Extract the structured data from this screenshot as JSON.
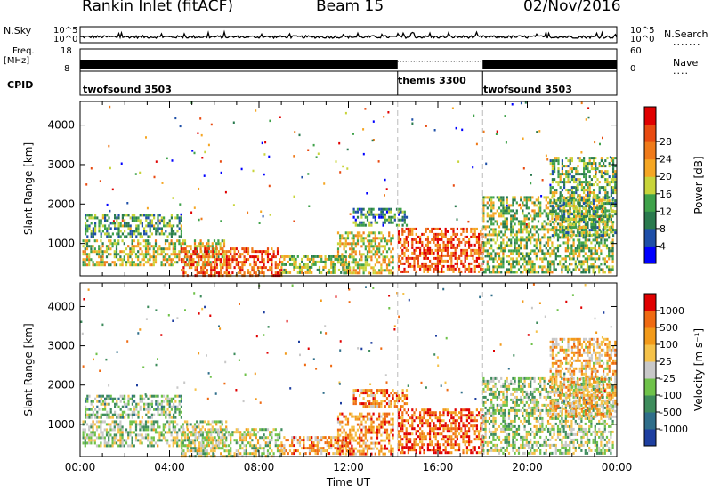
{
  "header": {
    "station": "Rankin Inlet (fitACF)",
    "beam": "Beam 15",
    "date": "02/Nov/2016"
  },
  "top_panels": {
    "nsky_label": "N.Sky",
    "nsky_ticks": [
      "10^5",
      "10^0"
    ],
    "nsearch_label": "N.Search",
    "freq_label_1": "Freq.",
    "freq_label_2": "[MHz]",
    "freq_ticks": [
      "18",
      "8"
    ],
    "nave_label": "Nave",
    "nave_ticks": [
      "60",
      "0"
    ],
    "cpid_label": "CPID",
    "cpid_segments": [
      {
        "label": "twofsound 3503",
        "start_hour": 0.0,
        "end_hour": 14.2
      },
      {
        "label": "themis 3300",
        "start_hour": 14.2,
        "end_hour": 18.0
      },
      {
        "label": "twofsound 3503",
        "start_hour": 18.0,
        "end_hour": 24.0
      }
    ]
  },
  "chart_data": [
    {
      "type": "heatmap",
      "panel": "power",
      "xlabel": "Time UT",
      "ylabel": "Slant Range [km]",
      "x_ticks": [
        "00:00",
        "04:00",
        "08:00",
        "12:00",
        "16:00",
        "20:00",
        "00:00"
      ],
      "xlim_hours": [
        0,
        24
      ],
      "y_ticks": [
        1000,
        2000,
        3000,
        4000
      ],
      "ylim": [
        180,
        4600
      ],
      "mode_change_hours": [
        14.2,
        18.0
      ],
      "colorbar": {
        "label": "Power [dB]",
        "ticks": [
          "4",
          "8",
          "12",
          "16",
          "20",
          "24",
          "28"
        ],
        "range": [
          0,
          32
        ],
        "colors": [
          "#0000ff",
          "#1e4fa8",
          "#2a7a4e",
          "#3fa24a",
          "#c8d43a",
          "#f5a623",
          "#ef7a1a",
          "#e84a10",
          "#e00000"
        ]
      },
      "scatter_regions": [
        {
          "t0": 0.2,
          "t1": 4.5,
          "r0": 1200,
          "r1": 1750,
          "level": 0.35
        },
        {
          "t0": 0.1,
          "t1": 6.5,
          "r0": 450,
          "r1": 1100,
          "level": 0.5
        },
        {
          "t0": 4.5,
          "t1": 9.0,
          "r0": 200,
          "r1": 900,
          "level": 0.8
        },
        {
          "t0": 9.0,
          "t1": 12.0,
          "r0": 250,
          "r1": 700,
          "level": 0.45
        },
        {
          "t0": 11.5,
          "t1": 14.0,
          "r0": 250,
          "r1": 1300,
          "level": 0.55
        },
        {
          "t0": 12.2,
          "t1": 14.6,
          "r0": 1450,
          "r1": 1900,
          "level": 0.3
        },
        {
          "t0": 14.2,
          "t1": 18.0,
          "r0": 300,
          "r1": 1400,
          "level": 0.8
        },
        {
          "t0": 18.0,
          "t1": 23.8,
          "r0": 250,
          "r1": 2200,
          "level": 0.45
        },
        {
          "t0": 21.0,
          "t1": 23.9,
          "r0": 1200,
          "r1": 3200,
          "level": 0.4
        }
      ]
    },
    {
      "type": "heatmap",
      "panel": "velocity",
      "xlabel": "Time UT",
      "ylabel": "Slant Range [km]",
      "x_ticks": [
        "00:00",
        "04:00",
        "08:00",
        "12:00",
        "16:00",
        "20:00",
        "00:00"
      ],
      "xlim_hours": [
        0,
        24
      ],
      "y_ticks": [
        1000,
        2000,
        3000,
        4000
      ],
      "ylim": [
        180,
        4600
      ],
      "mode_change_hours": [
        14.2,
        18.0
      ],
      "colorbar": {
        "label": "Velocity [m s⁻¹]",
        "ticks": [
          "1000",
          "500",
          "100",
          "25",
          "-25",
          "-100",
          "-500",
          "-1000"
        ],
        "colors": [
          "#1e3fa0",
          "#2f6e8a",
          "#3e8c5c",
          "#6fc24a",
          "#c8c8c8",
          "#f5c24a",
          "#f29a1a",
          "#ef6a12",
          "#e00000"
        ]
      },
      "scatter_regions": [
        {
          "t0": 0.2,
          "t1": 4.5,
          "r0": 1200,
          "r1": 1750,
          "level": 0.4
        },
        {
          "t0": 0.1,
          "t1": 6.5,
          "r0": 450,
          "r1": 1100,
          "level": 0.45
        },
        {
          "t0": 4.5,
          "t1": 9.0,
          "r0": 200,
          "r1": 900,
          "level": 0.5
        },
        {
          "t0": 9.0,
          "t1": 12.0,
          "r0": 250,
          "r1": 700,
          "level": 0.7
        },
        {
          "t0": 11.5,
          "t1": 14.0,
          "r0": 250,
          "r1": 1300,
          "level": 0.75
        },
        {
          "t0": 12.2,
          "t1": 14.6,
          "r0": 1450,
          "r1": 1900,
          "level": 0.75
        },
        {
          "t0": 14.2,
          "t1": 18.0,
          "r0": 300,
          "r1": 1400,
          "level": 0.85
        },
        {
          "t0": 18.0,
          "t1": 23.8,
          "r0": 250,
          "r1": 2200,
          "level": 0.45
        },
        {
          "t0": 21.0,
          "t1": 23.9,
          "r0": 1200,
          "r1": 3200,
          "level": 0.65
        }
      ]
    }
  ]
}
